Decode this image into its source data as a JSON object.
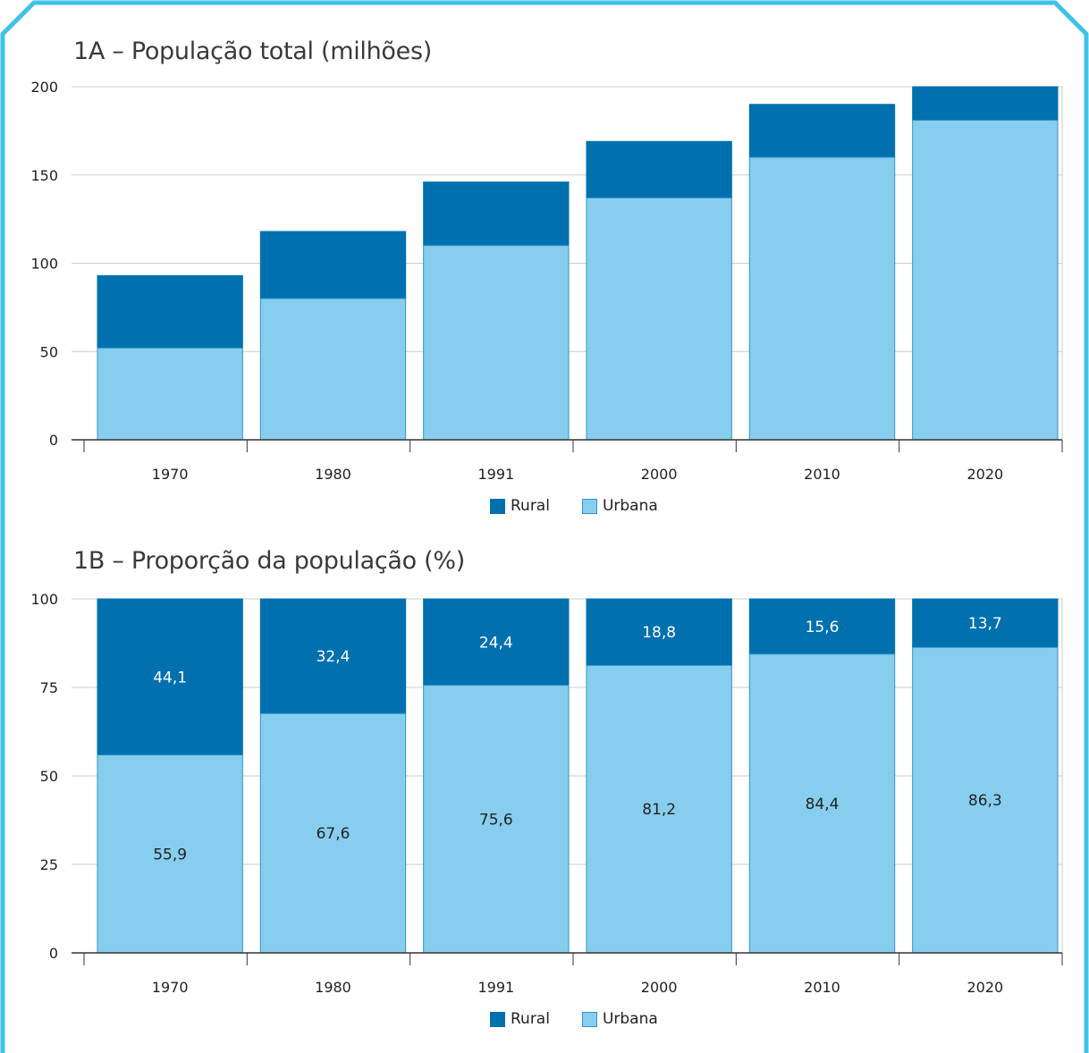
{
  "colors": {
    "rural": "#0070ae",
    "urbana": "#87ceee",
    "urbana_stroke": "#2b95c9",
    "frame": "#3ec2e8",
    "grid": "#cccccc",
    "axis": "#333333"
  },
  "chart_data": [
    {
      "type": "bar",
      "stacked": true,
      "title": "1A – População total (milhões)",
      "categories": [
        "1970",
        "1980",
        "1991",
        "2000",
        "2010",
        "2020"
      ],
      "series": [
        {
          "name": "Urbana",
          "values": [
            52,
            80,
            110,
            137,
            160,
            181
          ]
        },
        {
          "name": "Rural",
          "values": [
            41,
            38,
            36,
            32,
            30,
            19
          ]
        }
      ],
      "ylim": [
        0,
        200
      ],
      "yticks": [
        "0",
        "50",
        "100",
        "150",
        "200"
      ],
      "grid": true,
      "legend": {
        "position": "bottom-center",
        "entries": [
          "Rural",
          "Urbana"
        ]
      }
    },
    {
      "type": "bar",
      "stacked": true,
      "title": "1B – Proporção da população (%)",
      "categories": [
        "1970",
        "1980",
        "1991",
        "2000",
        "2010",
        "2020"
      ],
      "series": [
        {
          "name": "Urbana",
          "values": [
            55.9,
            67.6,
            75.6,
            81.2,
            84.4,
            86.3
          ],
          "labels": [
            "55,9",
            "67,6",
            "75,6",
            "81,2",
            "84,4",
            "86,3"
          ]
        },
        {
          "name": "Rural",
          "values": [
            44.1,
            32.4,
            24.4,
            18.8,
            15.6,
            13.7
          ],
          "labels": [
            "44,1",
            "32,4",
            "24,4",
            "18,8",
            "15,6",
            "13,7"
          ]
        }
      ],
      "ylim": [
        0,
        100
      ],
      "yticks": [
        "0",
        "25",
        "50",
        "75",
        "100"
      ],
      "grid": true,
      "legend": {
        "position": "bottom-center",
        "entries": [
          "Rural",
          "Urbana"
        ]
      }
    }
  ]
}
